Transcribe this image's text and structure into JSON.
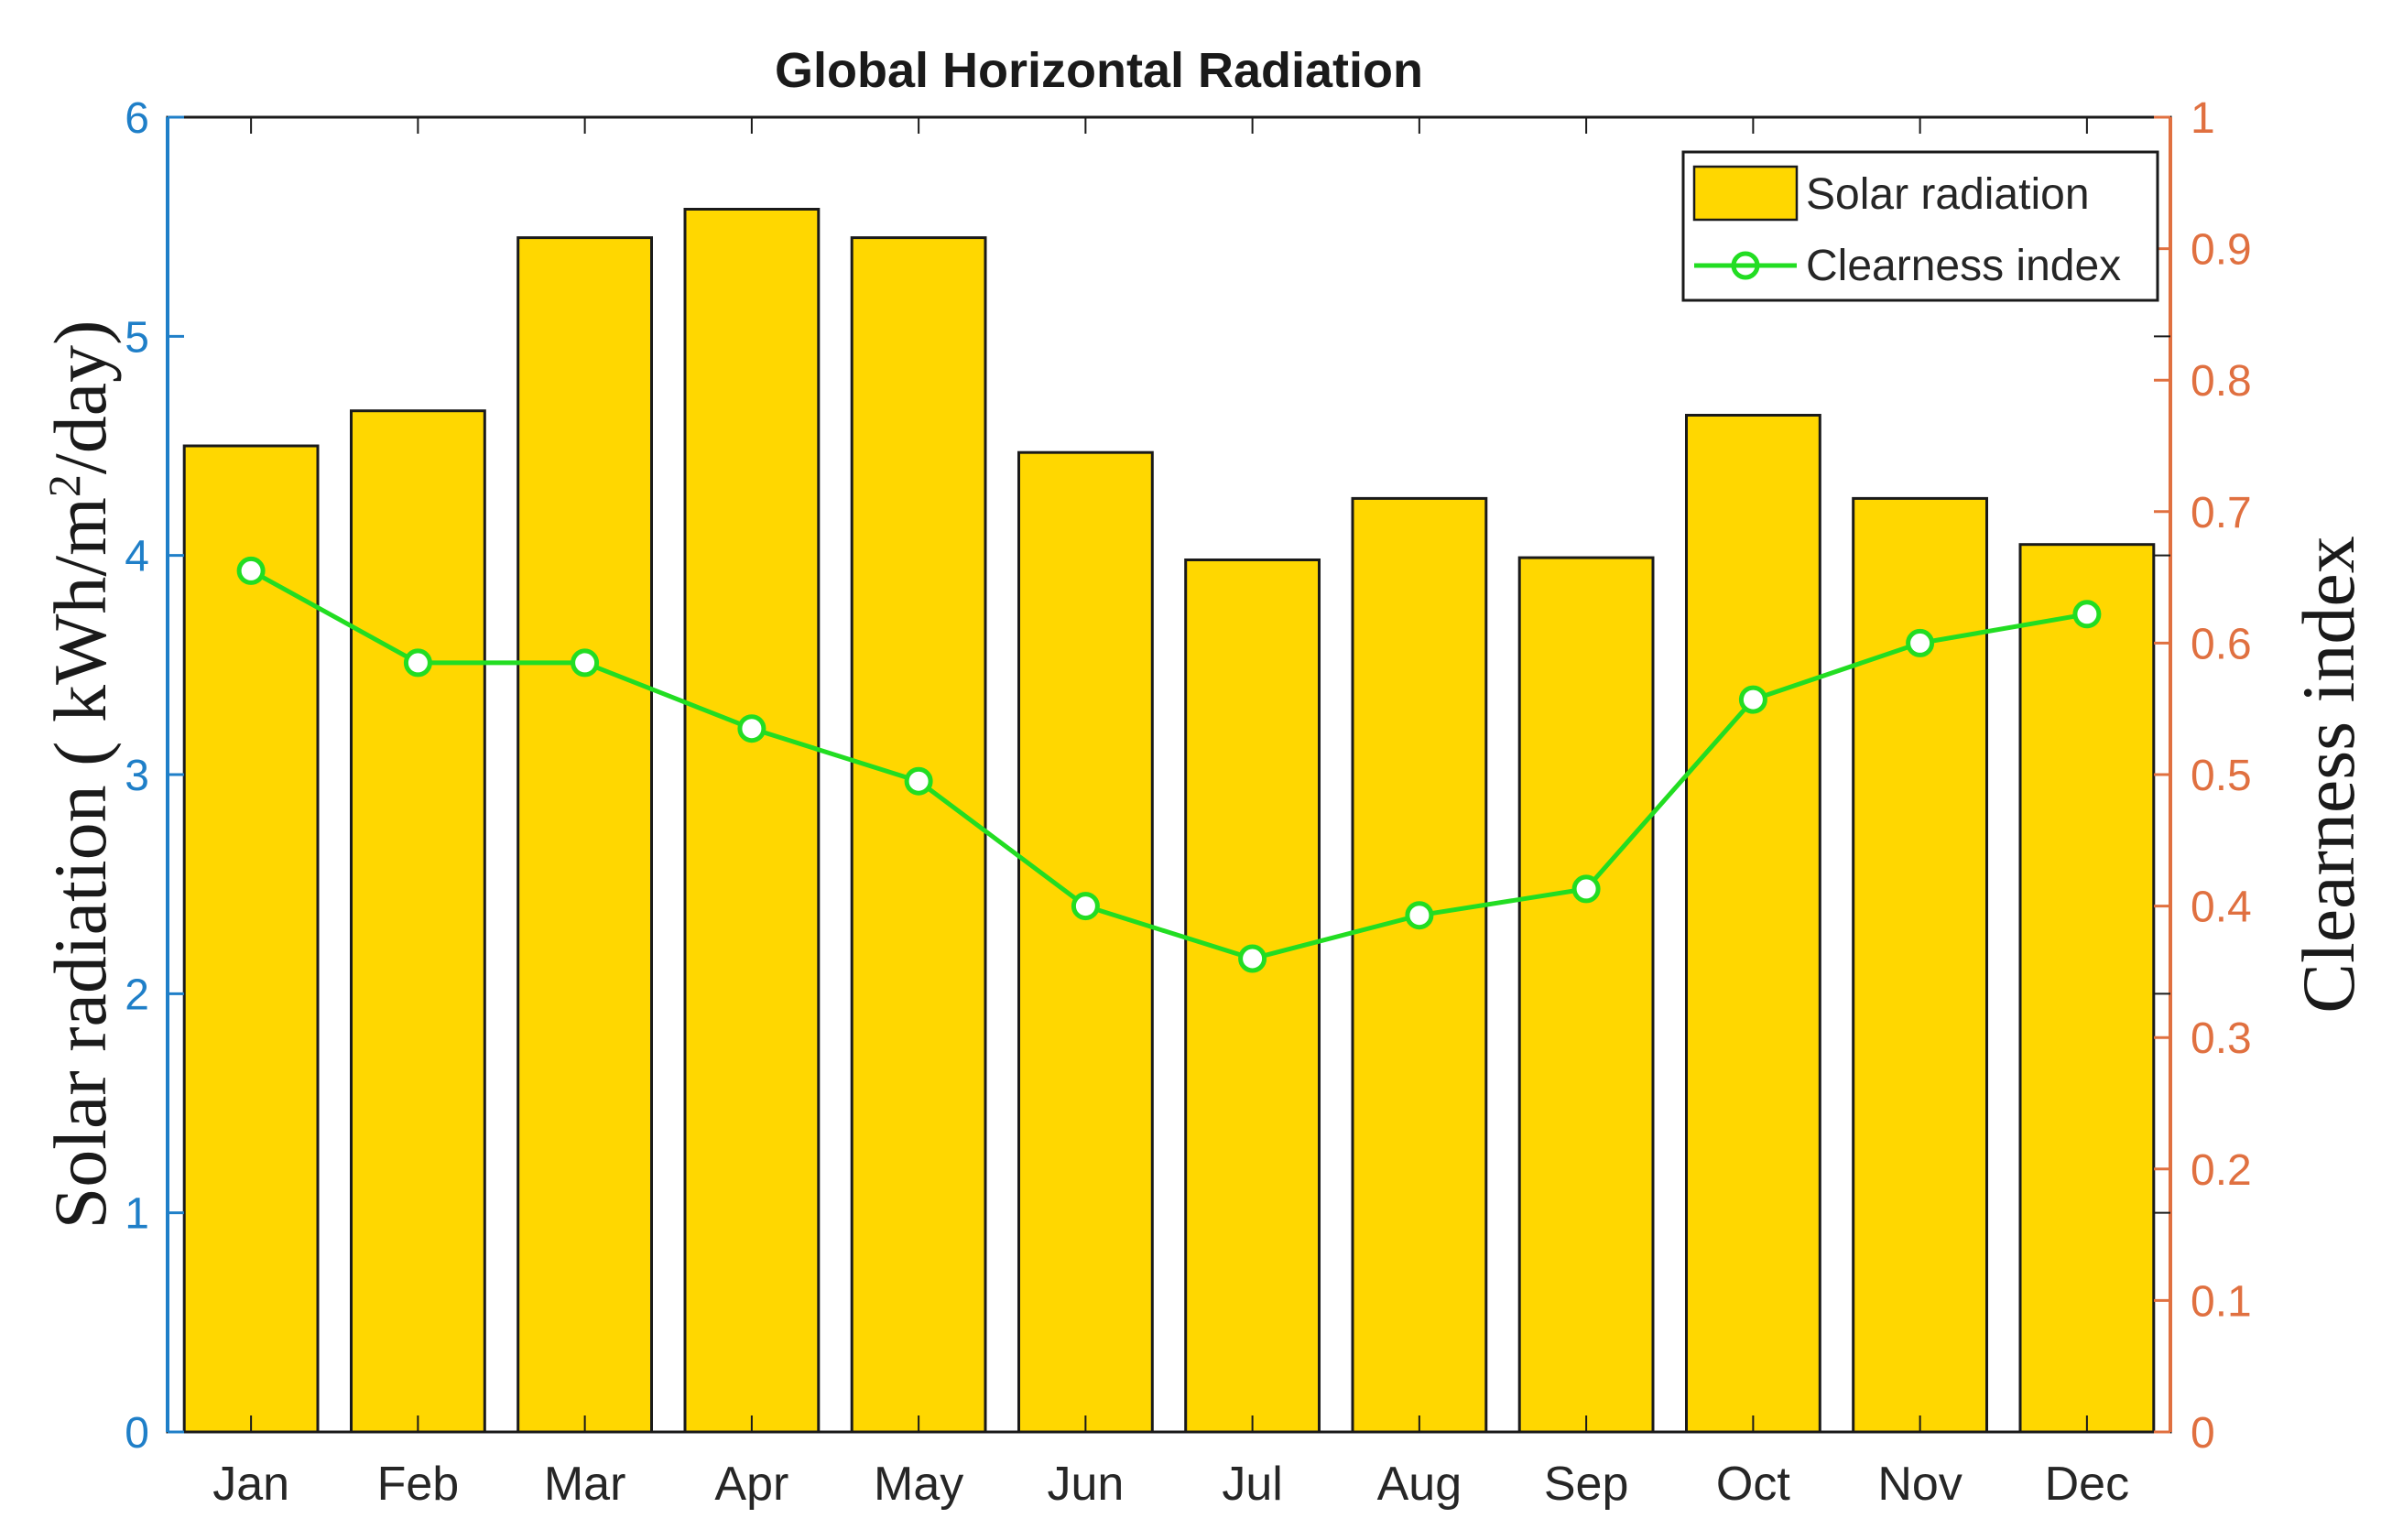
{
  "chart_data": {
    "type": "bar",
    "title": "Global Horizontal Radiation",
    "categories": [
      "Jan",
      "Feb",
      "Mar",
      "Apr",
      "May",
      "Jun",
      "Jul",
      "Aug",
      "Sep",
      "Oct",
      "Nov",
      "Dec"
    ],
    "series": [
      {
        "name": "Solar radiation",
        "type": "bar",
        "axis": "left",
        "color": "#FFD700",
        "values": [
          4.5,
          4.66,
          5.45,
          5.58,
          5.45,
          4.47,
          3.98,
          4.26,
          3.99,
          4.64,
          4.26,
          4.05
        ]
      },
      {
        "name": "Clearness index",
        "type": "line",
        "axis": "right",
        "marker": "circle",
        "color": "#22DD22",
        "values": [
          0.655,
          0.585,
          0.585,
          0.535,
          0.495,
          0.4,
          0.36,
          0.393,
          0.413,
          0.557,
          0.6,
          0.622
        ]
      }
    ],
    "ylabel": "Solar radiation ( kWh/m²/day)",
    "ylabel_parts": [
      "Solar radiation ( kWh/m",
      "2",
      "/day)"
    ],
    "ylim": [
      0,
      6
    ],
    "yticks": [
      "0",
      "1",
      "2",
      "3",
      "4",
      "5",
      "6"
    ],
    "y2label": "Clearness index",
    "y2lim": [
      0,
      1
    ],
    "y2ticks": [
      "0",
      "0.1",
      "0.2",
      "0.3",
      "0.4",
      "0.5",
      "0.6",
      "0.7",
      "0.8",
      "0.9",
      "1"
    ],
    "legend_position": "top-right",
    "colors": {
      "left_axis": "#1F7FC8",
      "right_axis": "#E07040",
      "bar_fill": "#FFD700",
      "bar_edge": "#1a1a1a",
      "line": "#22DD22"
    }
  }
}
